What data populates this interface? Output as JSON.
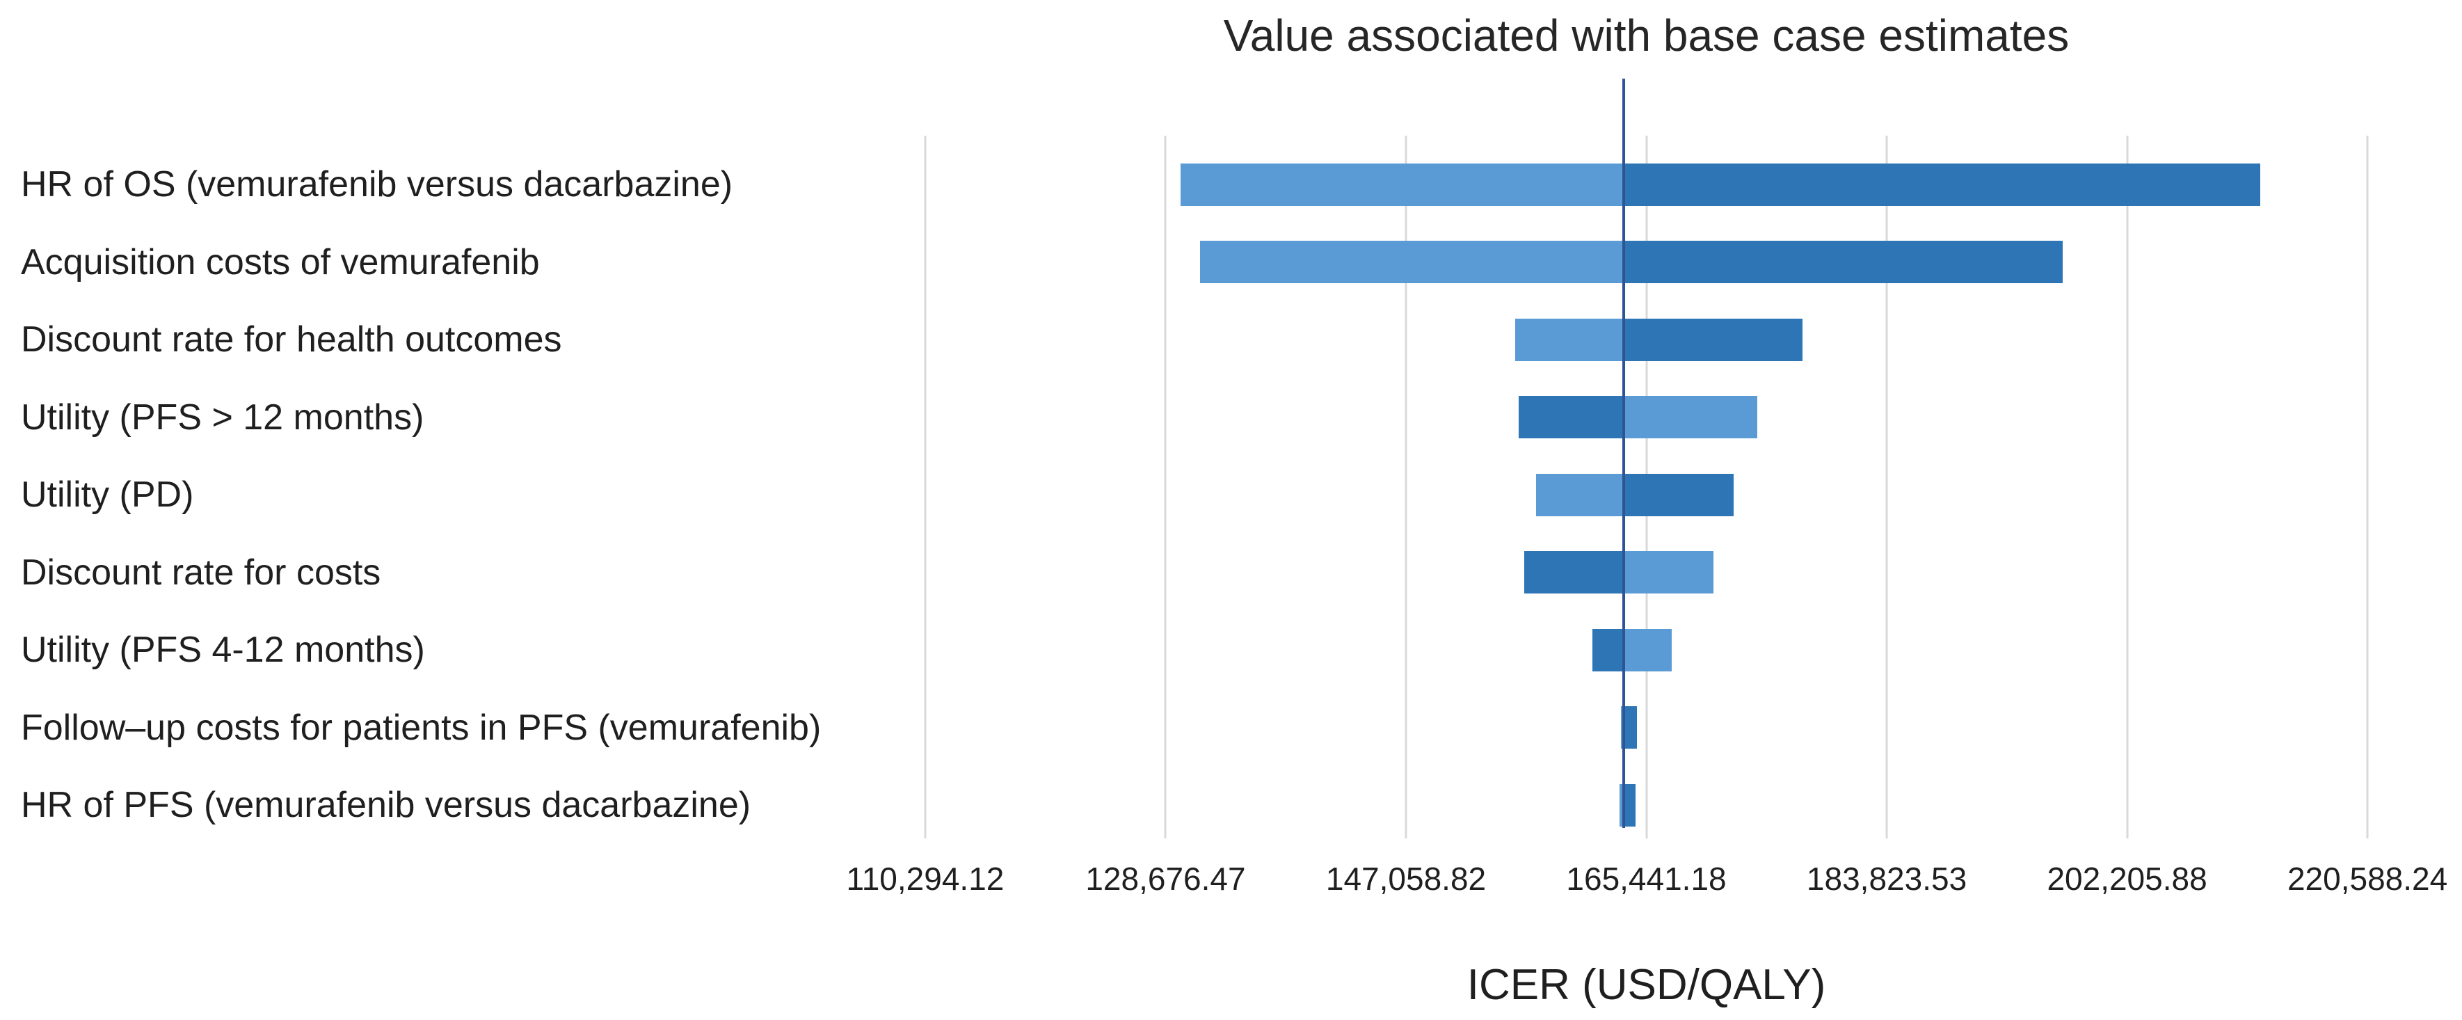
{
  "chart_data": {
    "type": "bar",
    "subtype": "tornado",
    "title": "Value associated with base case estimates",
    "xlabel": "ICER (USD/QALY)",
    "ylabel": "",
    "grid": true,
    "legend_position": "none",
    "x_min": 110294.12,
    "x_max": 220588.24,
    "x_ticks": [
      110294.12,
      128676.47,
      147058.82,
      165441.18,
      183823.53,
      202205.88,
      220588.24
    ],
    "x_tick_labels": [
      "110,294.12",
      "128,676.47",
      "147,058.82",
      "165,441.18",
      "183,823.53",
      "202,205.88",
      "220,588.24"
    ],
    "base_case_icer": 163700,
    "categories": [
      "HR of OS (vemurafenib versus dacarbazine)",
      "Acquisition costs of vemurafenib",
      "Discount rate for health outcomes",
      "Utility (PFS > 12 months)",
      "Utility (PD)",
      "Discount rate for costs",
      "Utility (PFS 4-12 months)",
      "Follow–up costs for patients in PFS (vemurafenib)",
      "HR of PFS (vemurafenib versus dacarbazine)"
    ],
    "rows": [
      {
        "label": "HR of OS (vemurafenib versus dacarbazine)",
        "low": 129800,
        "high": 212400,
        "low_side": "light",
        "high_side": "dark"
      },
      {
        "label": "Acquisition costs of vemurafenib",
        "low": 131300,
        "high": 197300,
        "low_side": "light",
        "high_side": "dark"
      },
      {
        "label": "Discount rate for health outcomes",
        "low": 155400,
        "high": 177400,
        "low_side": "light",
        "high_side": "dark"
      },
      {
        "label": "Utility (PFS > 12 months)",
        "low": 155700,
        "high": 173900,
        "low_side": "dark",
        "high_side": "light"
      },
      {
        "label": "Utility (PD)",
        "low": 157000,
        "high": 172100,
        "low_side": "light",
        "high_side": "dark"
      },
      {
        "label": "Discount rate for costs",
        "low": 156100,
        "high": 170600,
        "low_side": "dark",
        "high_side": "light"
      },
      {
        "label": "Utility (PFS 4-12 months)",
        "low": 161300,
        "high": 167400,
        "low_side": "dark",
        "high_side": "light"
      },
      {
        "label": "Follow–up costs for patients in PFS (vemurafenib)",
        "low": 163500,
        "high": 164700,
        "low_side": "light",
        "high_side": "dark"
      },
      {
        "label": "HR of PFS (vemurafenib versus dacarbazine)",
        "low": 163400,
        "high": 164600,
        "low_side": "light",
        "high_side": "dark"
      }
    ],
    "colors": {
      "light": "#5B9BD5",
      "dark": "#2E75B6",
      "base_line": "#2F5496",
      "gridline": "#D9D9D9",
      "text": "#262626",
      "background": "#FFFFFF"
    }
  }
}
